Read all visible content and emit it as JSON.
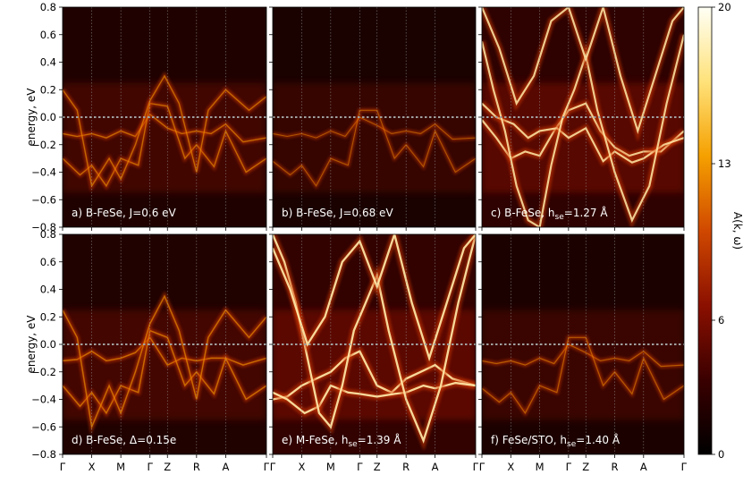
{
  "chart_data": {
    "type": "heatmap",
    "ylabel": "energy, eV",
    "ylim": [
      -0.8,
      0.8
    ],
    "yticks": [
      "0.8",
      "0.6",
      "0.4",
      "0.2",
      "0.0",
      "−0.2",
      "−0.4",
      "−0.6",
      "−0.8"
    ],
    "ytick_values": [
      0.8,
      0.6,
      0.4,
      0.2,
      0.0,
      -0.2,
      -0.4,
      -0.6,
      -0.8
    ],
    "kpath": [
      "Γ",
      "X",
      "M",
      "Γ",
      "Z",
      "R",
      "A",
      "Γ"
    ],
    "kpath_positions": [
      0,
      1,
      2,
      3,
      3.6,
      4.6,
      5.6,
      7
    ],
    "fermi_level": 0.0,
    "colorbar": {
      "label": "A(k, ω)",
      "ticks": [
        "0",
        "6",
        "13",
        "20"
      ],
      "tick_values": [
        0,
        6,
        13,
        20
      ],
      "range": [
        0,
        20
      ],
      "colormap": [
        "#000000",
        "#3a0000",
        "#8b1000",
        "#d04800",
        "#f5a000",
        "#ffe27a",
        "#fffff5"
      ]
    },
    "panels": [
      {
        "label_main": "a) B-FeSe, J=0.6 eV",
        "label_sub": "",
        "label_tail": "",
        "intensity": 0.35,
        "bands": [
          {
            "k": [
              0,
              0.5,
              1,
              1.5,
              2,
              2.5,
              3,
              3.6,
              4.1,
              4.6,
              5.1,
              5.6,
              6.2,
              7
            ],
            "e": [
              -0.12,
              -0.14,
              -0.12,
              -0.15,
              -0.1,
              -0.14,
              0.02,
              -0.08,
              -0.12,
              -0.1,
              -0.12,
              -0.05,
              -0.18,
              -0.15
            ]
          },
          {
            "k": [
              0,
              0.6,
              1,
              1.5,
              2,
              2.6,
              3,
              3.6,
              4.2,
              4.6,
              5.2,
              5.6,
              6.3,
              7
            ],
            "e": [
              -0.3,
              -0.42,
              -0.35,
              -0.5,
              -0.3,
              -0.35,
              0.1,
              0.08,
              -0.3,
              -0.2,
              -0.36,
              -0.1,
              -0.4,
              -0.3
            ]
          },
          {
            "k": [
              0,
              0.5,
              1,
              1.6,
              2,
              2.5,
              3,
              3.5,
              4,
              4.6,
              5,
              5.6,
              6.4,
              7
            ],
            "e": [
              0.2,
              0.05,
              -0.5,
              -0.3,
              -0.45,
              -0.2,
              0.12,
              0.3,
              0.1,
              -0.4,
              0.05,
              0.2,
              0.05,
              0.15
            ]
          }
        ]
      },
      {
        "label_main": "b) B-FeSe, J=0.68 eV",
        "label_sub": "",
        "label_tail": "",
        "intensity": 0.16,
        "bands": [
          {
            "k": [
              0,
              0.5,
              1,
              1.5,
              2,
              2.5,
              3,
              3.6,
              4.1,
              4.6,
              5.1,
              5.6,
              6.2,
              7
            ],
            "e": [
              -0.12,
              -0.14,
              -0.12,
              -0.15,
              -0.1,
              -0.14,
              0.0,
              -0.06,
              -0.12,
              -0.1,
              -0.12,
              -0.05,
              -0.16,
              -0.15
            ]
          },
          {
            "k": [
              0,
              0.6,
              1,
              1.5,
              2,
              2.6,
              3,
              3.6,
              4.2,
              4.6,
              5.2,
              5.6,
              6.3,
              7
            ],
            "e": [
              -0.32,
              -0.42,
              -0.35,
              -0.5,
              -0.3,
              -0.35,
              0.05,
              0.05,
              -0.3,
              -0.2,
              -0.36,
              -0.1,
              -0.4,
              -0.3
            ]
          }
        ]
      },
      {
        "label_main": "c) B-FeSe, h",
        "label_sub": "se",
        "label_tail": "=1.27 Å",
        "intensity": 0.85,
        "bands": [
          {
            "k": [
              0,
              0.5,
              1,
              1.5,
              2,
              2.5,
              3,
              3.6,
              4.1,
              4.6,
              5.1,
              5.6,
              6.2,
              7
            ],
            "e": [
              -0.02,
              -0.15,
              -0.3,
              -0.25,
              -0.28,
              -0.1,
              0.05,
              0.1,
              -0.1,
              -0.22,
              -0.28,
              -0.25,
              -0.25,
              -0.1
            ]
          },
          {
            "k": [
              0,
              0.5,
              1.1,
              1.6,
              2,
              2.6,
              3,
              3.6,
              4.2,
              4.6,
              5.2,
              5.6,
              6.3,
              7
            ],
            "e": [
              0.1,
              0.0,
              -0.05,
              -0.15,
              -0.1,
              -0.08,
              -0.15,
              -0.08,
              -0.32,
              -0.25,
              -0.33,
              -0.3,
              -0.2,
              -0.15
            ]
          },
          {
            "k": [
              0,
              0.4,
              0.8,
              1.2,
              1.6,
              2,
              2.4,
              2.8,
              3.2,
              3.6,
              4,
              4.6,
              5.2,
              5.8,
              6.4,
              7
            ],
            "e": [
              0.55,
              0.2,
              -0.1,
              -0.5,
              -0.75,
              -0.8,
              -0.35,
              0.0,
              0.2,
              0.45,
              0.05,
              -0.4,
              -0.75,
              -0.5,
              0.1,
              0.6
            ]
          },
          {
            "k": [
              0,
              0.6,
              1.2,
              1.8,
              2.4,
              3,
              3.6,
              4.2,
              4.8,
              5.4,
              6,
              6.6,
              7
            ],
            "e": [
              0.8,
              0.5,
              0.1,
              0.3,
              0.7,
              0.8,
              0.42,
              0.8,
              0.3,
              -0.1,
              0.3,
              0.7,
              0.8
            ]
          }
        ]
      },
      {
        "label_main": "d) B-FeSe, Δ=0.15e",
        "label_sub": "",
        "label_tail": "",
        "intensity": 0.4,
        "bands": [
          {
            "k": [
              0,
              0.5,
              1,
              1.5,
              2,
              2.5,
              3,
              3.6,
              4.1,
              4.6,
              5.1,
              5.6,
              6.2,
              7
            ],
            "e": [
              -0.12,
              -0.11,
              -0.05,
              -0.12,
              -0.1,
              -0.06,
              0.05,
              -0.15,
              -0.1,
              -0.12,
              -0.1,
              -0.1,
              -0.15,
              -0.1
            ]
          },
          {
            "k": [
              0,
              0.6,
              1,
              1.5,
              2,
              2.6,
              3,
              3.6,
              4.2,
              4.6,
              5.2,
              5.6,
              6.3,
              7
            ],
            "e": [
              -0.3,
              -0.45,
              -0.35,
              -0.5,
              -0.3,
              -0.35,
              0.1,
              0.05,
              -0.3,
              -0.2,
              -0.36,
              -0.1,
              -0.4,
              -0.3
            ]
          },
          {
            "k": [
              0,
              0.5,
              1,
              1.6,
              2,
              2.5,
              3,
              3.5,
              4,
              4.6,
              5,
              5.6,
              6.4,
              7
            ],
            "e": [
              0.25,
              0.05,
              -0.6,
              -0.3,
              -0.5,
              -0.2,
              0.15,
              0.35,
              0.1,
              -0.4,
              0.05,
              0.25,
              0.05,
              0.2
            ]
          }
        ]
      },
      {
        "label_main": "e) M-FeSe, h",
        "label_sub": "se",
        "label_tail": "=1.39 Å",
        "intensity": 0.95,
        "bands": [
          {
            "k": [
              0,
              0.5,
              1,
              1.5,
              2,
              2.5,
              3,
              3.6,
              4.1,
              4.6,
              5.1,
              5.6,
              6.2,
              7
            ],
            "e": [
              -0.4,
              -0.38,
              -0.3,
              -0.25,
              -0.2,
              -0.1,
              -0.05,
              -0.3,
              -0.35,
              -0.25,
              -0.2,
              -0.15,
              -0.25,
              -0.3
            ]
          },
          {
            "k": [
              0,
              0.5,
              1.1,
              1.6,
              2,
              2.6,
              3,
              3.6,
              4.2,
              4.6,
              5.2,
              5.6,
              6.3,
              7
            ],
            "e": [
              -0.35,
              -0.4,
              -0.5,
              -0.45,
              -0.3,
              -0.35,
              -0.36,
              -0.38,
              -0.36,
              -0.35,
              -0.3,
              -0.32,
              -0.28,
              -0.3
            ]
          },
          {
            "k": [
              0,
              0.4,
              0.8,
              1.2,
              1.6,
              2,
              2.4,
              2.8,
              3.2,
              3.6,
              4,
              4.6,
              5.2,
              5.8,
              6.4,
              7
            ],
            "e": [
              0.8,
              0.6,
              0.3,
              -0.1,
              -0.5,
              -0.6,
              -0.3,
              0.1,
              0.3,
              0.5,
              0.1,
              -0.4,
              -0.7,
              -0.3,
              0.3,
              0.8
            ]
          },
          {
            "k": [
              0,
              0.6,
              1.2,
              1.8,
              2.4,
              3,
              3.6,
              4.2,
              4.8,
              5.4,
              6,
              6.6,
              7
            ],
            "e": [
              0.7,
              0.4,
              0.0,
              0.2,
              0.6,
              0.75,
              0.42,
              0.8,
              0.3,
              -0.1,
              0.3,
              0.7,
              0.8
            ]
          }
        ]
      },
      {
        "label_main": "f) FeSe/STO, h",
        "label_sub": "se",
        "label_tail": "=1.40 Å",
        "intensity": 0.22,
        "bands": [
          {
            "k": [
              0,
              0.5,
              1,
              1.5,
              2,
              2.5,
              3,
              3.6,
              4.1,
              4.6,
              5.1,
              5.6,
              6.2,
              7
            ],
            "e": [
              -0.12,
              -0.14,
              -0.12,
              -0.15,
              -0.1,
              -0.14,
              0.0,
              -0.06,
              -0.12,
              -0.1,
              -0.12,
              -0.05,
              -0.16,
              -0.15
            ]
          },
          {
            "k": [
              0,
              0.6,
              1,
              1.5,
              2,
              2.6,
              3,
              3.6,
              4.2,
              4.6,
              5.2,
              5.6,
              6.3,
              7
            ],
            "e": [
              -0.32,
              -0.42,
              -0.35,
              -0.5,
              -0.3,
              -0.35,
              0.05,
              0.05,
              -0.3,
              -0.2,
              -0.36,
              -0.1,
              -0.4,
              -0.3
            ]
          }
        ]
      }
    ]
  }
}
